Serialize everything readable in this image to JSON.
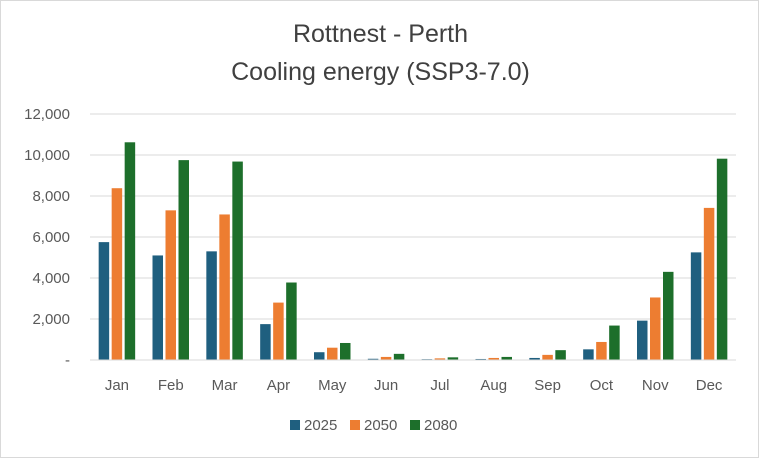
{
  "chart_data": {
    "type": "bar",
    "title": [
      "Rottnest - Perth",
      "Cooling energy (SSP3-7.0)"
    ],
    "xlabel": "",
    "ylabel": "",
    "categories": [
      "Jan",
      "Feb",
      "Mar",
      "Apr",
      "May",
      "Jun",
      "Jul",
      "Aug",
      "Sep",
      "Oct",
      "Nov",
      "Dec"
    ],
    "ylim": [
      0,
      12000
    ],
    "yticks": [
      0,
      2000,
      4000,
      6000,
      8000,
      10000,
      12000
    ],
    "ytick_labels": [
      "-",
      "2,000",
      "4,000",
      "6,000",
      "8,000",
      "10,000",
      "12,000"
    ],
    "grid": true,
    "legend_position": "bottom",
    "series": [
      {
        "name": "2025",
        "color": "#1f5f7f",
        "values": [
          5750,
          5100,
          5300,
          1750,
          380,
          60,
          40,
          50,
          100,
          520,
          1920,
          5250
        ]
      },
      {
        "name": "2050",
        "color": "#ed7d31",
        "values": [
          8380,
          7300,
          7100,
          2800,
          600,
          150,
          80,
          100,
          250,
          880,
          3050,
          7420
        ]
      },
      {
        "name": "2080",
        "color": "#1d6f2b",
        "values": [
          10620,
          9750,
          9680,
          3780,
          830,
          300,
          130,
          150,
          480,
          1680,
          4300,
          9820
        ]
      }
    ]
  }
}
